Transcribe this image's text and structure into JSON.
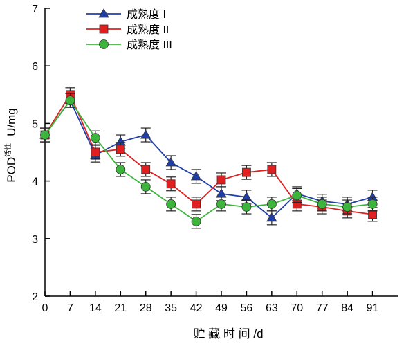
{
  "chart_data": {
    "type": "line",
    "xlabel": "贮 藏 时 间 /d",
    "ylabel": {
      "main": "POD",
      "sub": "活性",
      "unit": "U/mg"
    },
    "x": [
      0,
      7,
      14,
      21,
      28,
      35,
      42,
      49,
      56,
      63,
      70,
      77,
      84,
      91
    ],
    "xlim": [
      0,
      98
    ],
    "ylim": [
      2,
      7
    ],
    "xticks": [
      "0",
      "7",
      "14",
      "21",
      "28",
      "35",
      "42",
      "49",
      "56",
      "63",
      "70",
      "77",
      "84",
      "91"
    ],
    "yticks": [
      "2",
      "3",
      "4",
      "5",
      "6",
      "7"
    ],
    "grid": false,
    "legend_position": "top-left",
    "series": [
      {
        "name": "成熟度 I",
        "color": "#1f3ea8",
        "marker": "triangle",
        "values": [
          4.8,
          5.4,
          4.45,
          4.68,
          4.8,
          4.32,
          4.08,
          3.78,
          3.72,
          3.36,
          3.78,
          3.65,
          3.6,
          3.72
        ],
        "errors": [
          0.12,
          0.12,
          0.12,
          0.12,
          0.12,
          0.12,
          0.12,
          0.12,
          0.12,
          0.12,
          0.12,
          0.12,
          0.12,
          0.12
        ]
      },
      {
        "name": "成熟度 II",
        "color": "#e02020",
        "marker": "square",
        "values": [
          4.8,
          5.5,
          4.5,
          4.55,
          4.2,
          3.95,
          3.6,
          4.02,
          4.15,
          4.2,
          3.6,
          3.55,
          3.48,
          3.42
        ],
        "errors": [
          0.12,
          0.12,
          0.12,
          0.12,
          0.12,
          0.12,
          0.12,
          0.12,
          0.12,
          0.12,
          0.12,
          0.12,
          0.12,
          0.12
        ]
      },
      {
        "name": "成熟度 III",
        "color": "#3db53d",
        "marker": "circle",
        "values": [
          4.8,
          5.4,
          4.75,
          4.2,
          3.9,
          3.6,
          3.3,
          3.6,
          3.55,
          3.6,
          3.75,
          3.6,
          3.55,
          3.6
        ],
        "errors": [
          0.12,
          0.12,
          0.12,
          0.12,
          0.12,
          0.12,
          0.12,
          0.12,
          0.12,
          0.12,
          0.12,
          0.12,
          0.12,
          0.12
        ]
      }
    ]
  }
}
